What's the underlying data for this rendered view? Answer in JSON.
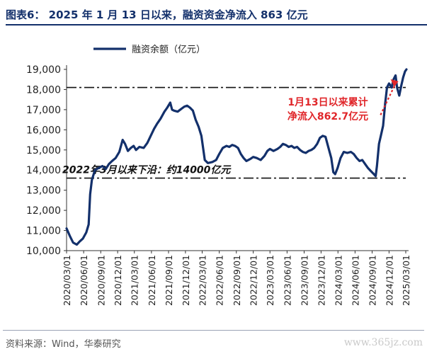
{
  "title": "图表6：  2025 年 1 月 13 日以来，融资资金净流入 863 亿元",
  "source": "资料来源：Wind，华泰研究",
  "watermark": "www.365jz.com",
  "colors": {
    "series": "#13306b",
    "annotation_red": "#e0262a",
    "title": "#13306b"
  },
  "chart_data": {
    "type": "line",
    "title": "",
    "xlabel": "",
    "ylabel": "",
    "ylim": [
      10000,
      19000
    ],
    "yticks": [
      "10,000",
      "11,000",
      "12,000",
      "13,000",
      "14,000",
      "15,000",
      "16,000",
      "17,000",
      "18,000",
      "19,000"
    ],
    "xticks": [
      "2020/03/01",
      "2020/06/01",
      "2020/09/01",
      "2020/12/01",
      "2021/03/01",
      "2021/06/01",
      "2021/09/01",
      "2021/12/01",
      "2022/03/01",
      "2022/06/01",
      "2022/09/01",
      "2022/12/01",
      "2023/03/01",
      "2023/06/01",
      "2023/09/01",
      "2023/12/01",
      "2024/03/01",
      "2024/06/01",
      "2024/09/01",
      "2024/12/01",
      "2025/03/01"
    ],
    "grid": false,
    "legend": "top-left",
    "series": [
      {
        "name": "融资余额（亿元）",
        "points": [
          [
            "2020-03-01",
            11100
          ],
          [
            "2020-03-20",
            10700
          ],
          [
            "2020-04-05",
            10400
          ],
          [
            "2020-04-25",
            10300
          ],
          [
            "2020-05-10",
            10450
          ],
          [
            "2020-05-28",
            10600
          ],
          [
            "2020-06-15",
            10900
          ],
          [
            "2020-06-28",
            11300
          ],
          [
            "2020-07-06",
            12800
          ],
          [
            "2020-07-15",
            13500
          ],
          [
            "2020-08-01",
            14000
          ],
          [
            "2020-08-20",
            14100
          ],
          [
            "2020-09-10",
            14200
          ],
          [
            "2020-09-28",
            14050
          ],
          [
            "2020-10-15",
            14300
          ],
          [
            "2020-11-01",
            14450
          ],
          [
            "2020-11-20",
            14600
          ],
          [
            "2020-12-10",
            14900
          ],
          [
            "2020-12-28",
            15500
          ],
          [
            "2021-01-10",
            15300
          ],
          [
            "2021-01-25",
            14950
          ],
          [
            "2021-02-10",
            15100
          ],
          [
            "2021-02-25",
            15200
          ],
          [
            "2021-03-10",
            15000
          ],
          [
            "2021-03-28",
            15150
          ],
          [
            "2021-04-20",
            15100
          ],
          [
            "2021-05-10",
            15350
          ],
          [
            "2021-05-28",
            15700
          ],
          [
            "2021-06-15",
            16050
          ],
          [
            "2021-07-01",
            16300
          ],
          [
            "2021-07-20",
            16550
          ],
          [
            "2021-08-10",
            16900
          ],
          [
            "2021-08-25",
            17100
          ],
          [
            "2021-09-10",
            17350
          ],
          [
            "2021-09-20",
            17000
          ],
          [
            "2021-10-01",
            16950
          ],
          [
            "2021-10-20",
            16900
          ],
          [
            "2021-11-10",
            17050
          ],
          [
            "2021-11-25",
            17150
          ],
          [
            "2021-12-10",
            17200
          ],
          [
            "2021-12-25",
            17100
          ],
          [
            "2022-01-10",
            16950
          ],
          [
            "2022-01-25",
            16500
          ],
          [
            "2022-02-10",
            16150
          ],
          [
            "2022-02-25",
            15700
          ],
          [
            "2022-03-15",
            14500
          ],
          [
            "2022-04-01",
            14350
          ],
          [
            "2022-04-25",
            14400
          ],
          [
            "2022-05-15",
            14500
          ],
          [
            "2022-06-01",
            14800
          ],
          [
            "2022-06-20",
            15100
          ],
          [
            "2022-07-10",
            15200
          ],
          [
            "2022-07-25",
            15150
          ],
          [
            "2022-08-10",
            15250
          ],
          [
            "2022-08-25",
            15200
          ],
          [
            "2022-09-10",
            15100
          ],
          [
            "2022-09-25",
            14800
          ],
          [
            "2022-10-10",
            14600
          ],
          [
            "2022-10-25",
            14450
          ],
          [
            "2022-11-15",
            14550
          ],
          [
            "2022-12-01",
            14650
          ],
          [
            "2022-12-20",
            14600
          ],
          [
            "2023-01-10",
            14500
          ],
          [
            "2023-01-30",
            14700
          ],
          [
            "2023-02-15",
            14950
          ],
          [
            "2023-03-01",
            15050
          ],
          [
            "2023-03-20",
            14950
          ],
          [
            "2023-04-10",
            15050
          ],
          [
            "2023-04-25",
            15150
          ],
          [
            "2023-05-10",
            15300
          ],
          [
            "2023-05-25",
            15250
          ],
          [
            "2023-06-10",
            15150
          ],
          [
            "2023-06-25",
            15200
          ],
          [
            "2023-07-10",
            15100
          ],
          [
            "2023-07-25",
            15150
          ],
          [
            "2023-08-10",
            15000
          ],
          [
            "2023-08-25",
            14900
          ],
          [
            "2023-09-10",
            14850
          ],
          [
            "2023-09-25",
            14950
          ],
          [
            "2023-10-10",
            15000
          ],
          [
            "2023-10-25",
            15100
          ],
          [
            "2023-11-10",
            15300
          ],
          [
            "2023-11-25",
            15600
          ],
          [
            "2023-12-10",
            15700
          ],
          [
            "2023-12-25",
            15650
          ],
          [
            "2024-01-10",
            15100
          ],
          [
            "2024-01-25",
            14600
          ],
          [
            "2024-02-05",
            13900
          ],
          [
            "2024-02-15",
            13800
          ],
          [
            "2024-02-28",
            14100
          ],
          [
            "2024-03-15",
            14600
          ],
          [
            "2024-04-01",
            14900
          ],
          [
            "2024-04-20",
            14850
          ],
          [
            "2024-05-10",
            14900
          ],
          [
            "2024-05-25",
            14800
          ],
          [
            "2024-06-10",
            14600
          ],
          [
            "2024-06-25",
            14450
          ],
          [
            "2024-07-10",
            14500
          ],
          [
            "2024-07-25",
            14300
          ],
          [
            "2024-08-10",
            14100
          ],
          [
            "2024-08-25",
            13950
          ],
          [
            "2024-09-10",
            13800
          ],
          [
            "2024-09-20",
            13700
          ],
          [
            "2024-09-27",
            14200
          ],
          [
            "2024-10-08",
            15300
          ],
          [
            "2024-10-18",
            15700
          ],
          [
            "2024-10-30",
            16200
          ],
          [
            "2024-11-10",
            17300
          ],
          [
            "2024-11-20",
            18100
          ],
          [
            "2024-12-01",
            18300
          ],
          [
            "2024-12-15",
            18100
          ],
          [
            "2024-12-25",
            18500
          ],
          [
            "2025-01-05",
            18700
          ],
          [
            "2025-01-13",
            18100
          ],
          [
            "2025-01-25",
            17700
          ],
          [
            "2025-02-05",
            18200
          ],
          [
            "2025-02-15",
            18600
          ],
          [
            "2025-02-25",
            18900
          ],
          [
            "2025-03-05",
            19000
          ]
        ]
      }
    ],
    "reference_lines": [
      {
        "y": 18100,
        "style": "dash-dot",
        "label": ""
      },
      {
        "y": 13600,
        "style": "dash-dot",
        "label": "2022年3月以来下沿：约14000亿元"
      }
    ],
    "annotations": [
      {
        "text_lines": [
          "1月13日以来累计",
          "净流入862.7亿元"
        ],
        "color": "red",
        "arrow_from": [
          "2024-12-01",
          17300
        ],
        "arrow_to": [
          "2025-01-13",
          18300
        ]
      }
    ]
  }
}
